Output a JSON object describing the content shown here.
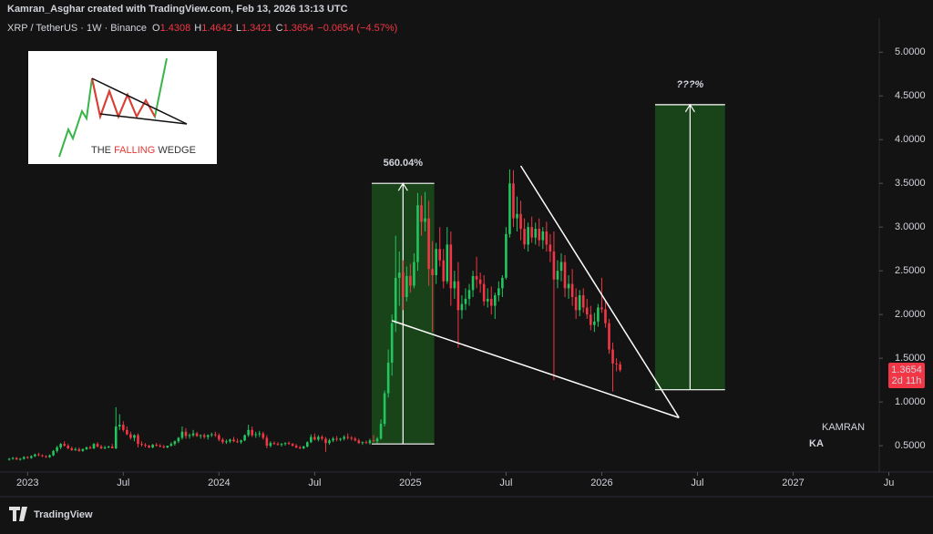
{
  "header": {
    "credit": "Kamran_Asghar created with TradingView.com, Feb 13, 2026 13:13 UTC",
    "symbol": "XRP / TetherUS · 1W · Binance",
    "ohlc_labels": [
      "O",
      "H",
      "L",
      "C"
    ],
    "change": "−0.0654 (−4.57%)",
    "brand": "TradingView"
  },
  "inset": {
    "parts": [
      "THE ",
      "FALLING",
      " WEDGE"
    ]
  },
  "logo": {
    "small": "KAMRAN",
    "big": "KA"
  },
  "chart_data": {
    "type": "candlestick",
    "up_color": "#22c55e",
    "down_color": "#f23645",
    "ylim": [
      0.23,
      5.18
    ],
    "xlim": [
      -2.5,
      236.4
    ],
    "grid": false,
    "yticks": [
      {
        "value": 0.5,
        "label": "0.5000"
      },
      {
        "value": 1,
        "label": "1.0000"
      },
      {
        "value": 1.5,
        "label": "1.5000"
      },
      {
        "value": 2,
        "label": "2.0000"
      },
      {
        "value": 2.5,
        "label": "2.5000"
      },
      {
        "value": 3,
        "label": "3.0000"
      },
      {
        "value": 3.5,
        "label": "3.5000"
      },
      {
        "value": 4,
        "label": "4.0000"
      },
      {
        "value": 4.5,
        "label": "4.5000"
      },
      {
        "value": 5,
        "label": "5.0000"
      }
    ],
    "xticks": [
      {
        "value": 5,
        "label": "2023"
      },
      {
        "value": 31,
        "label": "Jul"
      },
      {
        "value": 57,
        "label": "2024"
      },
      {
        "value": 83,
        "label": "Jul"
      },
      {
        "value": 109,
        "label": "2025"
      },
      {
        "value": 135,
        "label": "Jul"
      },
      {
        "value": 161,
        "label": "2026"
      },
      {
        "value": 187,
        "label": "Jul"
      },
      {
        "value": 213,
        "label": "2027"
      },
      {
        "value": 239,
        "label": "Ju"
      }
    ],
    "countdown": "2d 11h",
    "ranges": [
      {
        "label": "560.04%",
        "x": [
          98.5,
          115.5
        ],
        "y": [
          0.52,
          3.5
        ]
      },
      {
        "label": "???%",
        "x": [
          175.5,
          194.5
        ],
        "y": [
          1.14,
          4.4
        ]
      }
    ],
    "wedge": [
      [
        [
          139,
          3.7
        ],
        [
          182,
          0.82
        ]
      ],
      [
        [
          104,
          1.93
        ],
        [
          182,
          0.82
        ]
      ]
    ],
    "ohlc": [
      [
        0.34,
        0.36,
        0.33,
        0.35
      ],
      [
        0.35,
        0.37,
        0.34,
        0.36
      ],
      [
        0.36,
        0.37,
        0.34,
        0.34
      ],
      [
        0.34,
        0.36,
        0.33,
        0.35
      ],
      [
        0.35,
        0.38,
        0.34,
        0.37
      ],
      [
        0.37,
        0.38,
        0.35,
        0.36
      ],
      [
        0.36,
        0.39,
        0.35,
        0.38
      ],
      [
        0.38,
        0.41,
        0.37,
        0.4
      ],
      [
        0.4,
        0.42,
        0.38,
        0.39
      ],
      [
        0.39,
        0.4,
        0.37,
        0.38
      ],
      [
        0.38,
        0.39,
        0.36,
        0.37
      ],
      [
        0.37,
        0.4,
        0.36,
        0.39
      ],
      [
        0.39,
        0.45,
        0.38,
        0.44
      ],
      [
        0.44,
        0.5,
        0.42,
        0.48
      ],
      [
        0.48,
        0.53,
        0.46,
        0.52
      ],
      [
        0.52,
        0.55,
        0.49,
        0.5
      ],
      [
        0.5,
        0.52,
        0.46,
        0.47
      ],
      [
        0.47,
        0.49,
        0.44,
        0.45
      ],
      [
        0.45,
        0.48,
        0.44,
        0.46
      ],
      [
        0.46,
        0.48,
        0.43,
        0.44
      ],
      [
        0.44,
        0.47,
        0.43,
        0.46
      ],
      [
        0.46,
        0.49,
        0.45,
        0.48
      ],
      [
        0.48,
        0.5,
        0.46,
        0.47
      ],
      [
        0.47,
        0.53,
        0.46,
        0.52
      ],
      [
        0.52,
        0.54,
        0.48,
        0.49
      ],
      [
        0.49,
        0.51,
        0.46,
        0.47
      ],
      [
        0.47,
        0.5,
        0.46,
        0.48
      ],
      [
        0.48,
        0.5,
        0.47,
        0.49
      ],
      [
        0.49,
        0.52,
        0.47,
        0.47
      ],
      [
        0.47,
        0.94,
        0.46,
        0.72
      ],
      [
        0.72,
        0.86,
        0.68,
        0.74
      ],
      [
        0.74,
        0.78,
        0.66,
        0.68
      ],
      [
        0.68,
        0.72,
        0.62,
        0.63
      ],
      [
        0.63,
        0.66,
        0.57,
        0.59
      ],
      [
        0.59,
        0.63,
        0.55,
        0.62
      ],
      [
        0.62,
        0.64,
        0.48,
        0.52
      ],
      [
        0.52,
        0.55,
        0.49,
        0.51
      ],
      [
        0.51,
        0.53,
        0.48,
        0.5
      ],
      [
        0.5,
        0.51,
        0.47,
        0.48
      ],
      [
        0.48,
        0.52,
        0.47,
        0.51
      ],
      [
        0.51,
        0.53,
        0.49,
        0.5
      ],
      [
        0.5,
        0.52,
        0.48,
        0.49
      ],
      [
        0.49,
        0.51,
        0.47,
        0.48
      ],
      [
        0.48,
        0.5,
        0.47,
        0.5
      ],
      [
        0.5,
        0.54,
        0.49,
        0.52
      ],
      [
        0.52,
        0.56,
        0.5,
        0.55
      ],
      [
        0.55,
        0.6,
        0.53,
        0.59
      ],
      [
        0.59,
        0.72,
        0.57,
        0.66
      ],
      [
        0.66,
        0.7,
        0.58,
        0.61
      ],
      [
        0.61,
        0.64,
        0.58,
        0.62
      ],
      [
        0.62,
        0.68,
        0.6,
        0.64
      ],
      [
        0.64,
        0.66,
        0.6,
        0.61
      ],
      [
        0.61,
        0.63,
        0.58,
        0.62
      ],
      [
        0.62,
        0.64,
        0.58,
        0.6
      ],
      [
        0.6,
        0.63,
        0.57,
        0.62
      ],
      [
        0.62,
        0.65,
        0.6,
        0.63
      ],
      [
        0.63,
        0.66,
        0.6,
        0.62
      ],
      [
        0.62,
        0.64,
        0.55,
        0.57
      ],
      [
        0.57,
        0.59,
        0.52,
        0.54
      ],
      [
        0.54,
        0.57,
        0.52,
        0.55
      ],
      [
        0.55,
        0.58,
        0.53,
        0.57
      ],
      [
        0.57,
        0.6,
        0.54,
        0.55
      ],
      [
        0.55,
        0.58,
        0.53,
        0.54
      ],
      [
        0.54,
        0.57,
        0.52,
        0.56
      ],
      [
        0.56,
        0.63,
        0.55,
        0.62
      ],
      [
        0.62,
        0.74,
        0.6,
        0.68
      ],
      [
        0.68,
        0.72,
        0.6,
        0.62
      ],
      [
        0.62,
        0.66,
        0.59,
        0.63
      ],
      [
        0.63,
        0.67,
        0.6,
        0.64
      ],
      [
        0.64,
        0.66,
        0.57,
        0.59
      ],
      [
        0.59,
        0.62,
        0.47,
        0.5
      ],
      [
        0.5,
        0.55,
        0.48,
        0.53
      ],
      [
        0.53,
        0.55,
        0.51,
        0.52
      ],
      [
        0.52,
        0.54,
        0.5,
        0.51
      ],
      [
        0.51,
        0.53,
        0.49,
        0.52
      ],
      [
        0.52,
        0.54,
        0.5,
        0.53
      ],
      [
        0.53,
        0.55,
        0.51,
        0.52
      ],
      [
        0.52,
        0.53,
        0.49,
        0.5
      ],
      [
        0.5,
        0.52,
        0.47,
        0.48
      ],
      [
        0.48,
        0.5,
        0.46,
        0.47
      ],
      [
        0.47,
        0.5,
        0.46,
        0.49
      ],
      [
        0.49,
        0.55,
        0.48,
        0.54
      ],
      [
        0.54,
        0.63,
        0.53,
        0.6
      ],
      [
        0.6,
        0.64,
        0.56,
        0.57
      ],
      [
        0.57,
        0.62,
        0.55,
        0.6
      ],
      [
        0.6,
        0.62,
        0.56,
        0.58
      ],
      [
        0.58,
        0.6,
        0.43,
        0.53
      ],
      [
        0.53,
        0.58,
        0.51,
        0.56
      ],
      [
        0.56,
        0.6,
        0.54,
        0.58
      ],
      [
        0.58,
        0.61,
        0.55,
        0.57
      ],
      [
        0.57,
        0.59,
        0.55,
        0.58
      ],
      [
        0.58,
        0.62,
        0.56,
        0.6
      ],
      [
        0.6,
        0.64,
        0.57,
        0.59
      ],
      [
        0.59,
        0.61,
        0.56,
        0.58
      ],
      [
        0.58,
        0.6,
        0.55,
        0.56
      ],
      [
        0.56,
        0.58,
        0.52,
        0.53
      ],
      [
        0.53,
        0.55,
        0.51,
        0.54
      ],
      [
        0.54,
        0.56,
        0.52,
        0.53
      ],
      [
        0.53,
        0.58,
        0.51,
        0.56
      ],
      [
        0.56,
        0.62,
        0.54,
        0.55
      ],
      [
        0.55,
        0.6,
        0.53,
        0.58
      ],
      [
        0.58,
        0.8,
        0.57,
        0.75
      ],
      [
        0.75,
        1.13,
        0.72,
        1.1
      ],
      [
        1.1,
        1.6,
        1.05,
        1.45
      ],
      [
        1.45,
        2,
        1.3,
        1.9
      ],
      [
        1.9,
        2.9,
        1.8,
        2.42
      ],
      [
        2.42,
        2.72,
        2.1,
        2.48
      ],
      [
        2.48,
        2.62,
        2.05,
        2.2
      ],
      [
        2.2,
        2.55,
        2.15,
        2.44
      ],
      [
        2.44,
        2.58,
        2.25,
        2.33
      ],
      [
        2.33,
        2.7,
        2.3,
        2.6
      ],
      [
        2.6,
        3.39,
        2.5,
        3.25
      ],
      [
        3.25,
        3.36,
        2.9,
        3.06
      ],
      [
        3.06,
        3.4,
        2.95,
        3.1
      ],
      [
        3.1,
        3.3,
        2.33,
        2.52
      ],
      [
        2.52,
        2.84,
        1.8,
        2.45
      ],
      [
        2.45,
        2.82,
        2.35,
        2.75
      ],
      [
        2.75,
        3,
        2.55,
        2.62
      ],
      [
        2.62,
        2.75,
        2.3,
        2.38
      ],
      [
        2.38,
        3,
        2.35,
        2.8
      ],
      [
        2.8,
        2.95,
        2.1,
        2.3
      ],
      [
        2.3,
        2.5,
        2.18,
        2.38
      ],
      [
        2.38,
        2.6,
        1.62,
        2.05
      ],
      [
        2.05,
        2.22,
        1.95,
        2.12
      ],
      [
        2.12,
        2.3,
        2.05,
        2.18
      ],
      [
        2.18,
        2.35,
        2.1,
        2.28
      ],
      [
        2.28,
        2.5,
        2.2,
        2.44
      ],
      [
        2.44,
        2.66,
        2.3,
        2.4
      ],
      [
        2.4,
        2.48,
        2.25,
        2.35
      ],
      [
        2.35,
        2.45,
        2.1,
        2.15
      ],
      [
        2.15,
        2.3,
        2.08,
        2.18
      ],
      [
        2.18,
        2.32,
        2,
        2.1
      ],
      [
        2.1,
        2.25,
        1.95,
        2.22
      ],
      [
        2.22,
        2.38,
        2.15,
        2.3
      ],
      [
        2.3,
        2.45,
        2.2,
        2.42
      ],
      [
        2.42,
        3,
        2.4,
        2.92
      ],
      [
        2.92,
        3.66,
        2.88,
        3.5
      ],
      [
        3.5,
        3.65,
        3,
        3.1
      ],
      [
        3.1,
        3.35,
        2.95,
        3.15
      ],
      [
        3.15,
        3.3,
        2.85,
        2.98
      ],
      [
        2.98,
        3.1,
        2.75,
        2.8
      ],
      [
        2.8,
        3.05,
        2.72,
        3
      ],
      [
        3,
        3.12,
        2.82,
        2.88
      ],
      [
        2.88,
        3.05,
        2.8,
        2.98
      ],
      [
        2.98,
        3.1,
        2.78,
        2.85
      ],
      [
        2.85,
        3,
        2.75,
        2.95
      ],
      [
        2.95,
        3.06,
        2.72,
        2.8
      ],
      [
        2.8,
        2.92,
        2.6,
        2.72
      ],
      [
        2.72,
        2.95,
        1.25,
        2.4
      ],
      [
        2.4,
        2.62,
        2.3,
        2.5
      ],
      [
        2.5,
        2.7,
        2.38,
        2.6
      ],
      [
        2.6,
        2.68,
        2.2,
        2.3
      ],
      [
        2.3,
        2.45,
        2.18,
        2.35
      ],
      [
        2.35,
        2.52,
        2.1,
        2.2
      ],
      [
        2.2,
        2.3,
        1.95,
        2.05
      ],
      [
        2.05,
        2.28,
        1.98,
        2.22
      ],
      [
        2.22,
        2.3,
        2.02,
        2.08
      ],
      [
        2.08,
        2.18,
        1.95,
        2
      ],
      [
        2,
        2.1,
        1.82,
        1.88
      ],
      [
        1.88,
        2.02,
        1.8,
        1.92
      ],
      [
        1.92,
        2.12,
        1.86,
        2.08
      ],
      [
        2.08,
        2.42,
        2.02,
        2.06
      ],
      [
        2.06,
        2.15,
        1.85,
        1.9
      ],
      [
        1.9,
        1.95,
        1.55,
        1.6
      ],
      [
        1.6,
        1.68,
        1.12,
        1.44
      ],
      [
        1.44,
        1.5,
        1.35,
        1.43
      ],
      [
        1.4308,
        1.4642,
        1.3421,
        1.3654
      ]
    ]
  }
}
